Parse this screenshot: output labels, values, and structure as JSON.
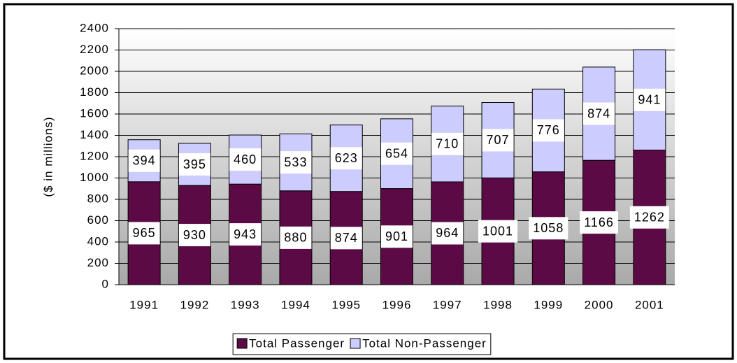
{
  "chart_data": {
    "type": "stacked-bar",
    "y_label": "($ in millions)",
    "categories": [
      "1991",
      "1992",
      "1993",
      "1994",
      "1995",
      "1996",
      "1997",
      "1998",
      "1999",
      "2000",
      "2001"
    ],
    "series": [
      {
        "name": "Total Passenger",
        "color": "#5c0a45",
        "values": [
          965,
          930,
          943,
          880,
          874,
          901,
          964,
          1001,
          1058,
          1166,
          1262
        ]
      },
      {
        "name": "Total Non-Passenger",
        "color": "#ccccff",
        "values": [
          394,
          395,
          460,
          533,
          623,
          654,
          710,
          707,
          776,
          874,
          941
        ]
      }
    ],
    "ylim": [
      0,
      2400
    ],
    "yticks": [
      0,
      200,
      400,
      600,
      800,
      1000,
      1200,
      1400,
      1600,
      1800,
      2000,
      2200,
      2400
    ],
    "grid": true,
    "legend": "bottom"
  }
}
